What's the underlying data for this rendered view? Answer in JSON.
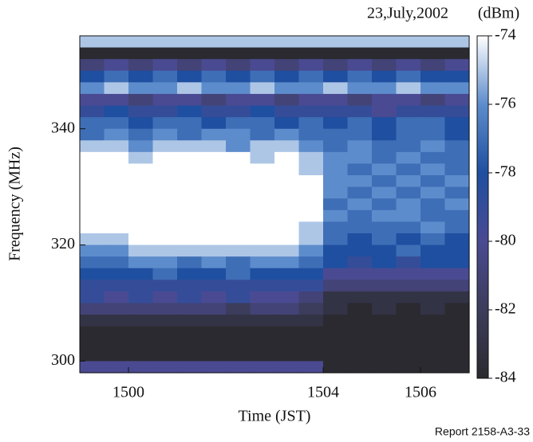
{
  "chart_data": {
    "type": "heatmap",
    "title": "23,July,2002",
    "colorbar_label": "(dBm)",
    "xlabel": "Time (JST)",
    "ylabel": "Frequency (MHz)",
    "note": "Report 2158-A3-33",
    "x": [
      1499.25,
      1499.75,
      1500.25,
      1500.75,
      1501.25,
      1501.75,
      1502.25,
      1502.75,
      1503.25,
      1503.75,
      1504.25,
      1504.75,
      1505.25,
      1505.75,
      1506.25,
      1506.75
    ],
    "y": [
      355,
      353,
      351,
      349,
      347,
      345,
      343,
      341,
      339,
      337,
      335,
      333,
      331,
      329,
      327,
      325,
      323,
      321,
      319,
      317,
      315,
      313,
      311,
      309,
      307,
      305,
      303,
      301,
      299
    ],
    "z": [
      [
        -75,
        -75,
        -75,
        -75,
        -75,
        -75,
        -75,
        -75,
        -75,
        -75,
        -75,
        -75,
        -75,
        -75,
        -75,
        -75
      ],
      [
        -84,
        -84,
        -84,
        -84,
        -84,
        -84,
        -84,
        -84,
        -84,
        -84,
        -84,
        -84,
        -84,
        -84,
        -84,
        -84
      ],
      [
        -81,
        -80,
        -81,
        -80,
        -81,
        -80,
        -81,
        -80,
        -81,
        -80,
        -81,
        -80,
        -81,
        -80,
        -81,
        -80
      ],
      [
        -78,
        -77,
        -78,
        -77,
        -78,
        -77,
        -78,
        -77,
        -78,
        -77,
        -78,
        -77,
        -78,
        -77,
        -78,
        -78
      ],
      [
        -76,
        -75,
        -76,
        -76,
        -75,
        -76,
        -76,
        -75,
        -76,
        -76,
        -75,
        -76,
        -76,
        -75,
        -76,
        -76
      ],
      [
        -80,
        -80,
        -81,
        -80,
        -80,
        -81,
        -80,
        -80,
        -81,
        -80,
        -80,
        -81,
        -80,
        -80,
        -81,
        -80
      ],
      [
        -79,
        -78,
        -79,
        -79,
        -78,
        -79,
        -79,
        -78,
        -79,
        -79,
        -79,
        -79,
        -80,
        -79,
        -79,
        -79
      ],
      [
        -77,
        -77,
        -78,
        -77,
        -77,
        -78,
        -77,
        -77,
        -78,
        -77,
        -78,
        -77,
        -78,
        -77,
        -77,
        -78
      ],
      [
        -77,
        -76,
        -77,
        -76,
        -77,
        -76,
        -76,
        -77,
        -76,
        -77,
        -77,
        -77,
        -78,
        -77,
        -77,
        -78
      ],
      [
        -75,
        -75,
        -76,
        -75,
        -75,
        -75,
        -76,
        -75,
        -75,
        -76,
        -77,
        -76,
        -77,
        -77,
        -76,
        -77
      ],
      [
        -74,
        -74,
        -75,
        -74,
        -74,
        -74,
        -74,
        -75,
        -74,
        -75,
        -76,
        -76,
        -77,
        -76,
        -77,
        -77
      ],
      [
        -74,
        -74,
        -74,
        -74,
        -74,
        -74,
        -74,
        -74,
        -74,
        -75,
        -76,
        -77,
        -76,
        -77,
        -76,
        -77
      ],
      [
        -74,
        -74,
        -74,
        -74,
        -74,
        -74,
        -74,
        -74,
        -74,
        -74,
        -76,
        -76,
        -77,
        -76,
        -77,
        -76
      ],
      [
        -74,
        -74,
        -74,
        -74,
        -74,
        -74,
        -74,
        -74,
        -74,
        -74,
        -76,
        -77,
        -76,
        -77,
        -76,
        -77
      ],
      [
        -74,
        -74,
        -74,
        -74,
        -74,
        -74,
        -74,
        -74,
        -74,
        -74,
        -77,
        -76,
        -77,
        -76,
        -77,
        -76
      ],
      [
        -74,
        -74,
        -74,
        -74,
        -74,
        -74,
        -74,
        -74,
        -74,
        -74,
        -76,
        -77,
        -76,
        -76,
        -77,
        -77
      ],
      [
        -74,
        -74,
        -74,
        -74,
        -74,
        -74,
        -74,
        -74,
        -74,
        -75,
        -77,
        -77,
        -77,
        -77,
        -76,
        -77
      ],
      [
        -75,
        -75,
        -74,
        -74,
        -74,
        -74,
        -74,
        -74,
        -74,
        -75,
        -77,
        -78,
        -77,
        -78,
        -77,
        -78
      ],
      [
        -76,
        -76,
        -75,
        -75,
        -75,
        -75,
        -75,
        -75,
        -75,
        -76,
        -78,
        -78,
        -78,
        -77,
        -78,
        -78
      ],
      [
        -77,
        -77,
        -76,
        -76,
        -77,
        -76,
        -77,
        -76,
        -76,
        -77,
        -78,
        -79,
        -78,
        -79,
        -78,
        -78
      ],
      [
        -78,
        -78,
        -78,
        -77,
        -78,
        -78,
        -77,
        -78,
        -78,
        -78,
        -80,
        -80,
        -80,
        -80,
        -80,
        -80
      ],
      [
        -79,
        -79,
        -79,
        -79,
        -79,
        -79,
        -79,
        -79,
        -79,
        -79,
        -81,
        -81,
        -81,
        -81,
        -81,
        -81
      ],
      [
        -79,
        -80,
        -79,
        -80,
        -79,
        -80,
        -79,
        -80,
        -80,
        -81,
        -83,
        -83,
        -83,
        -83,
        -83,
        -83
      ],
      [
        -81,
        -81,
        -81,
        -81,
        -81,
        -81,
        -82,
        -81,
        -81,
        -82,
        -83,
        -84,
        -83,
        -84,
        -83,
        -84
      ],
      [
        -83,
        -83,
        -83,
        -83,
        -83,
        -83,
        -83,
        -83,
        -83,
        -83,
        -84,
        -84,
        -84,
        -84,
        -84,
        -84
      ],
      [
        -84,
        -84,
        -84,
        -84,
        -84,
        -84,
        -84,
        -84,
        -84,
        -84,
        -84,
        -84,
        -84,
        -84,
        -84,
        -84
      ],
      [
        -84,
        -84,
        -84,
        -84,
        -84,
        -84,
        -84,
        -84,
        -84,
        -84,
        -84,
        -84,
        -84,
        -84,
        -84,
        -84
      ],
      [
        -84,
        -84,
        -84,
        -84,
        -84,
        -84,
        -84,
        -84,
        -84,
        -84,
        -84,
        -84,
        -84,
        -84,
        -84,
        -84
      ],
      [
        -80,
        -80,
        -80,
        -80,
        -80,
        -80,
        -80,
        -80,
        -80,
        -80,
        -84,
        -84,
        -84,
        -84,
        -84,
        -84
      ]
    ],
    "xlim": [
      1499,
      1507
    ],
    "xticks": [
      1500,
      1504,
      1506
    ],
    "ylim": [
      298,
      356
    ],
    "yticks": [
      300,
      320,
      340
    ],
    "clim": [
      -84,
      -74
    ],
    "cticks": [
      -84,
      -82,
      -80,
      -78,
      -76,
      -74
    ],
    "colormap": [
      "#2a2a30",
      "#3c3c5c",
      "#4a4a92",
      "#1f4fa0",
      "#5d8ccc",
      "#ffffff"
    ]
  }
}
